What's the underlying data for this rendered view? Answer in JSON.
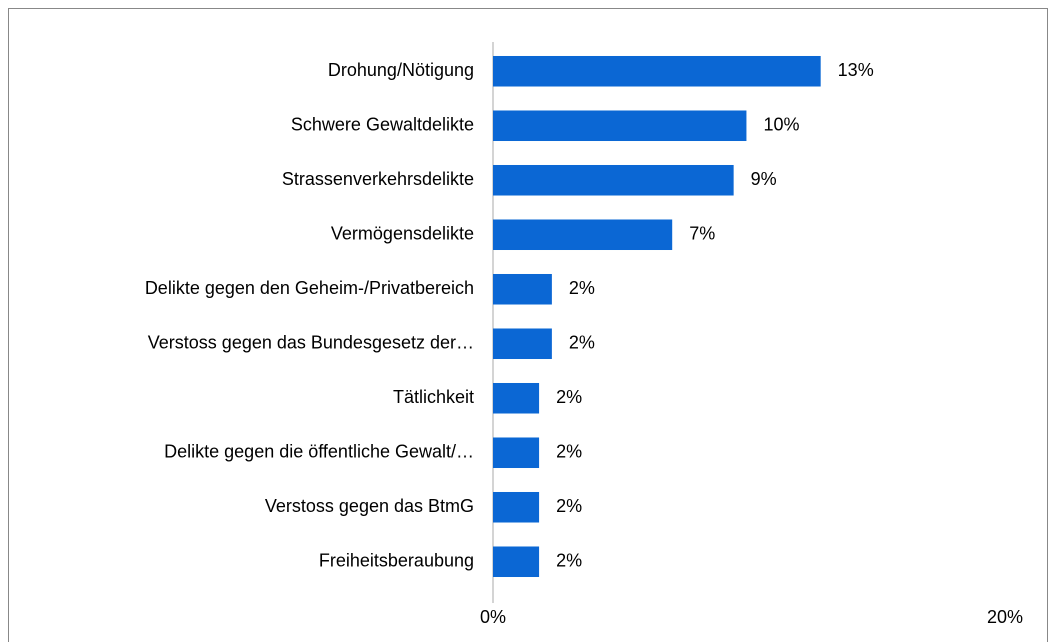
{
  "chart_data": {
    "type": "hbar",
    "categories": [
      "Drohung/Nötigung",
      "Schwere Gewaltdelikte",
      "Strassenverkehrsdelikte",
      "Vermögensdelikte",
      "Delikte gegen den Geheim-/Privatbereich",
      "Verstoss gegen das Bundesgesetz der…",
      "Tätlichkeit",
      "Delikte gegen die öffentliche Gewalt/…",
      "Verstoss gegen das BtmG",
      "Freiheitsberaubung"
    ],
    "values": [
      12.8,
      9.9,
      9.4,
      7.0,
      2.3,
      2.3,
      1.8,
      1.8,
      1.8,
      1.8
    ],
    "value_labels": [
      "13%",
      "10%",
      "9%",
      "7%",
      "2%",
      "2%",
      "2%",
      "2%",
      "2%",
      "2%"
    ],
    "color": "#0b67d4",
    "xlim": [
      0,
      20
    ],
    "xticks": [
      {
        "value": 0,
        "label": "0%"
      },
      {
        "value": 20,
        "label": "20%"
      }
    ]
  }
}
